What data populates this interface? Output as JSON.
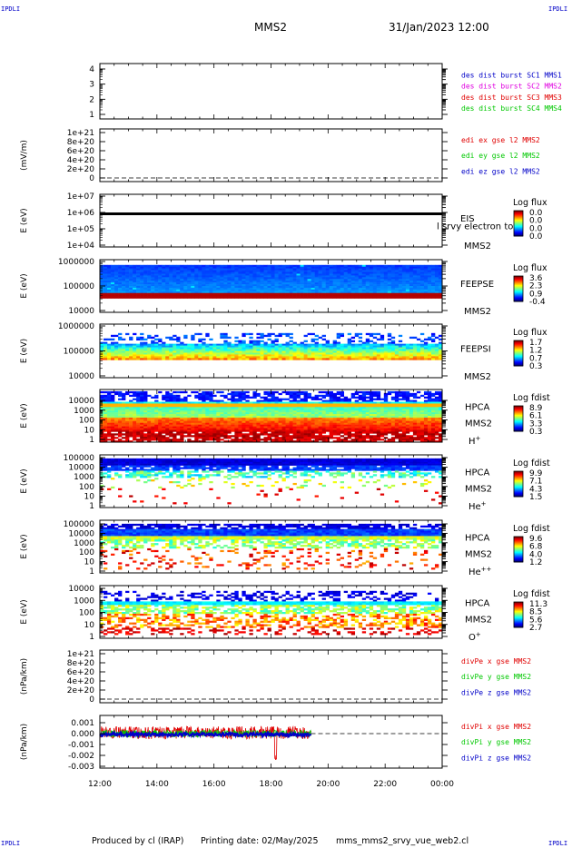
{
  "header": {
    "corner_label": "IPDLI",
    "spacecraft": "MMS2",
    "datetime": "31/Jan/2023 12:00"
  },
  "footer": {
    "produced_by": "Produced by cl (IRAP)",
    "printing_date": "Printing date: 02/May/2025",
    "script": "mms_mms2_srvy_vue_web2.cl"
  },
  "chart_data": {
    "type": "heatmap",
    "time_axis": {
      "ticks": [
        "12:00",
        "14:00",
        "16:00",
        "18:00",
        "20:00",
        "22:00",
        "00:00"
      ],
      "range_hours": [
        12,
        24
      ]
    },
    "panels": [
      {
        "id": "burst",
        "kind": "burst",
        "ylabel": "",
        "yticks": [
          "4",
          "3",
          "2",
          "1"
        ],
        "legend": [
          {
            "label": "des dist burst SC1 MMS1",
            "color": "#0000c8"
          },
          {
            "label": "des dist burst SC2 MMS2",
            "color": "#e000e0"
          },
          {
            "label": "des dist burst SC3 MMS3",
            "color": "#e00000"
          },
          {
            "label": "des dist burst SC4 MMS4",
            "color": "#00c800"
          }
        ]
      },
      {
        "id": "edi",
        "kind": "line_empty",
        "ylabel": "(mV/m)",
        "yticks": [
          "1e+21",
          "8e+20",
          "6e+20",
          "4e+20",
          "2e+20",
          "0"
        ],
        "legend": [
          {
            "label": "edi ex gse l2 MMS2",
            "color": "#e00000"
          },
          {
            "label": "edi ey gse l2 MMS2",
            "color": "#00c800"
          },
          {
            "label": "edi ez gse l2 MMS2",
            "color": "#0000c8"
          }
        ]
      },
      {
        "id": "eis",
        "kind": "spec",
        "ylabel": "E (eV)",
        "yticks": [
          "1e+07",
          "1e+06",
          "1e+05",
          "1e+04"
        ],
        "labels": [
          "EIS",
          "MMS2"
        ],
        "overlay_label": "l srvy electron to",
        "colorbar": {
          "title": "Log flux",
          "ticks": [
            "0.0",
            "0.0",
            "0.0",
            "0.0"
          ]
        },
        "profile": "eis"
      },
      {
        "id": "feepse",
        "kind": "spec",
        "ylabel": "E (eV)",
        "yticks": [
          "1000000",
          "100000",
          "10000"
        ],
        "labels": [
          "FEEPSE",
          "MMS2"
        ],
        "colorbar": {
          "title": "Log flux",
          "ticks": [
            "3.6",
            "2.3",
            "0.9",
            "-0.4"
          ]
        },
        "profile": "feepse"
      },
      {
        "id": "feepsi",
        "kind": "spec",
        "ylabel": "E (eV)",
        "yticks": [
          "1000000",
          "100000",
          "10000"
        ],
        "labels": [
          "FEEPSI",
          "MMS2"
        ],
        "colorbar": {
          "title": "Log flux",
          "ticks": [
            "1.7",
            "1.2",
            "0.7",
            "0.3"
          ]
        },
        "profile": "feepsi"
      },
      {
        "id": "hpca_h",
        "kind": "spec",
        "ylabel": "E (eV)",
        "yticks": [
          "10000",
          "1000",
          "100",
          "10",
          "1"
        ],
        "labels": [
          "HPCA",
          "MMS2"
        ],
        "species": {
          "base": "H",
          "sup": "+"
        },
        "colorbar": {
          "title": "Log fdist",
          "ticks": [
            "8.9",
            "6.1",
            "3.3",
            "0.3"
          ]
        },
        "profile": "hpca_h"
      },
      {
        "id": "hpca_he",
        "kind": "spec",
        "ylabel": "E (eV)",
        "yticks": [
          "100000",
          "10000",
          "1000",
          "100",
          "10",
          "1"
        ],
        "labels": [
          "HPCA",
          "MMS2"
        ],
        "species": {
          "base": "He",
          "sup": "+"
        },
        "colorbar": {
          "title": "Log fdist",
          "ticks": [
            "9.9",
            "7.1",
            "4.3",
            "1.5"
          ]
        },
        "profile": "hpca_he"
      },
      {
        "id": "hpca_he2",
        "kind": "spec",
        "ylabel": "E (eV)",
        "yticks": [
          "100000",
          "10000",
          "1000",
          "100",
          "10",
          "1"
        ],
        "labels": [
          "HPCA",
          "MMS2"
        ],
        "species": {
          "base": "He",
          "sup": "++"
        },
        "colorbar": {
          "title": "Log fdist",
          "ticks": [
            "9.6",
            "6.8",
            "4.0",
            "1.2"
          ]
        },
        "profile": "hpca_he2"
      },
      {
        "id": "hpca_o",
        "kind": "spec",
        "ylabel": "E (eV)",
        "yticks": [
          "10000",
          "1000",
          "100",
          "10",
          "1"
        ],
        "labels": [
          "HPCA",
          "MMS2"
        ],
        "species": {
          "base": "O",
          "sup": "+"
        },
        "colorbar": {
          "title": "Log fdist",
          "ticks": [
            "11.3",
            "8.5",
            "5.6",
            "2.7"
          ]
        },
        "profile": "hpca_o"
      },
      {
        "id": "divpe",
        "kind": "line_empty",
        "ylabel": "(nPa/km)",
        "yticks": [
          "1e+21",
          "8e+20",
          "6e+20",
          "4e+20",
          "2e+20",
          "0"
        ],
        "legend": [
          {
            "label": "divPe x gse MMS2",
            "color": "#e00000"
          },
          {
            "label": "divPe y gse MMS2",
            "color": "#00c800"
          },
          {
            "label": "divPe z gse MMS2",
            "color": "#0000c8"
          }
        ]
      },
      {
        "id": "divpi",
        "kind": "line_data",
        "ylabel": "(nPa/km)",
        "yticks": [
          "0.001",
          "0.000",
          "-0.001",
          "-0.002",
          "-0.003"
        ],
        "data_end_hour": 19.4,
        "legend": [
          {
            "label": "divPi x gse MMS2",
            "color": "#e00000"
          },
          {
            "label": "divPi y gse MMS2",
            "color": "#00c800"
          },
          {
            "label": "divPi z gse MMS2",
            "color": "#0000c8"
          }
        ]
      }
    ]
  }
}
